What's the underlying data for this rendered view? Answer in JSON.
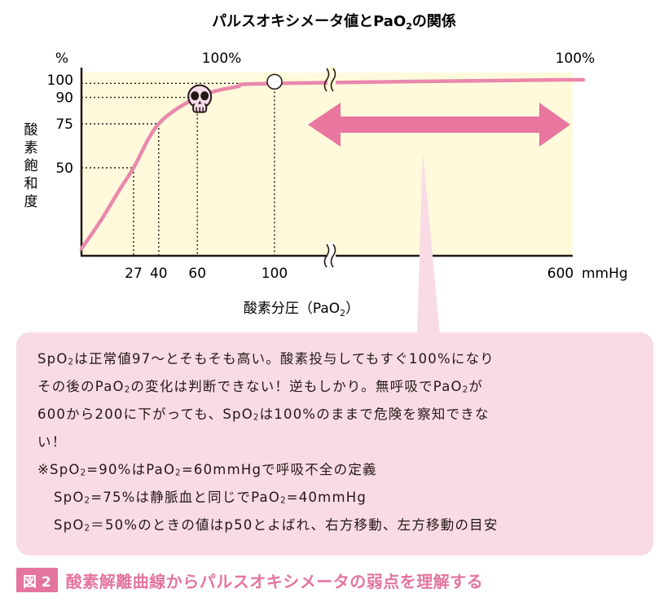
{
  "chart_data": {
    "type": "line",
    "title_parts": [
      "パルスオキシメータ値とPaO",
      "2",
      "の関係"
    ],
    "xlabel_parts": [
      "酸素分圧（PaO",
      "2",
      "）"
    ],
    "ylabel": "酸素飽和度",
    "yunit": "%",
    "xunit": "mmHg",
    "x_ticks": [
      {
        "value": 27,
        "label": "27"
      },
      {
        "value": 40,
        "label": "40"
      },
      {
        "value": 60,
        "label": "60"
      },
      {
        "value": 100,
        "label": "100"
      },
      {
        "value": 600,
        "label": "600"
      }
    ],
    "y_ticks": [
      {
        "value": 50,
        "label": "50"
      },
      {
        "value": 75,
        "label": "75"
      },
      {
        "value": 90,
        "label": "90"
      },
      {
        "value": 100,
        "label": "100"
      }
    ],
    "axis_break": "between 100 and 600 mmHg",
    "series": [
      {
        "x": [
          0,
          10,
          20,
          27,
          40,
          60,
          80,
          100,
          600
        ],
        "y": [
          4,
          20,
          38,
          50,
          75,
          90,
          96,
          98,
          100
        ]
      }
    ],
    "guides": [
      {
        "x": 27,
        "y": 50
      },
      {
        "x": 40,
        "y": 75
      },
      {
        "x": 60,
        "y": 90
      },
      {
        "x": 100,
        "y": 98
      }
    ],
    "annotations": [
      {
        "text": "100%",
        "position": "above-x-100"
      },
      {
        "text": "100%",
        "position": "above-x-600"
      }
    ],
    "markers": [
      {
        "icon": "skull-icon",
        "x": 60,
        "y": 90
      },
      {
        "icon": "open-circle-icon",
        "x": 100,
        "y": 98
      }
    ],
    "colors": {
      "curve": "#ea87ac",
      "arrow": "#e8769f",
      "plot_bg": "#fffadb",
      "callout_bg": "#f9dbe6",
      "caption": "#e3759e"
    }
  },
  "callout": {
    "lines": [
      [
        {
          "t": "SpO"
        },
        {
          "s": "2"
        },
        {
          "t": "は正常値97～とそもそも高い。酸素投与してもすぐ100%になり"
        }
      ],
      [
        {
          "t": "その後のPaO"
        },
        {
          "s": "2"
        },
        {
          "t": "の変化は判断できない！逆もしかり。無呼吸でPaO"
        },
        {
          "s": "2"
        },
        {
          "t": "が"
        }
      ],
      [
        {
          "t": "600から200に下がっても、SpO"
        },
        {
          "s": "2"
        },
        {
          "t": "は100%のままで危険を察知できな"
        }
      ],
      [
        {
          "t": "い！"
        }
      ],
      [
        {
          "t": "※SpO"
        },
        {
          "s": "2"
        },
        {
          "t": "=90%はPaO"
        },
        {
          "s": "2"
        },
        {
          "t": "=60mmHgで呼吸不全の定義"
        }
      ],
      [
        {
          "t": "SpO"
        },
        {
          "s": "2"
        },
        {
          "t": "=75%は静脈血と同じでPaO"
        },
        {
          "s": "2"
        },
        {
          "t": "=40mmHg"
        }
      ],
      [
        {
          "t": "SpO"
        },
        {
          "s": "2"
        },
        {
          "t": "＝50%のときの値はp50とよばれ、右方移動、左方移動の目安"
        }
      ]
    ],
    "indented_lines": [
      5,
      6
    ]
  },
  "caption": {
    "badge": "図 2",
    "text": "酸素解離曲線からパルスオキシメータの弱点を理解する"
  }
}
